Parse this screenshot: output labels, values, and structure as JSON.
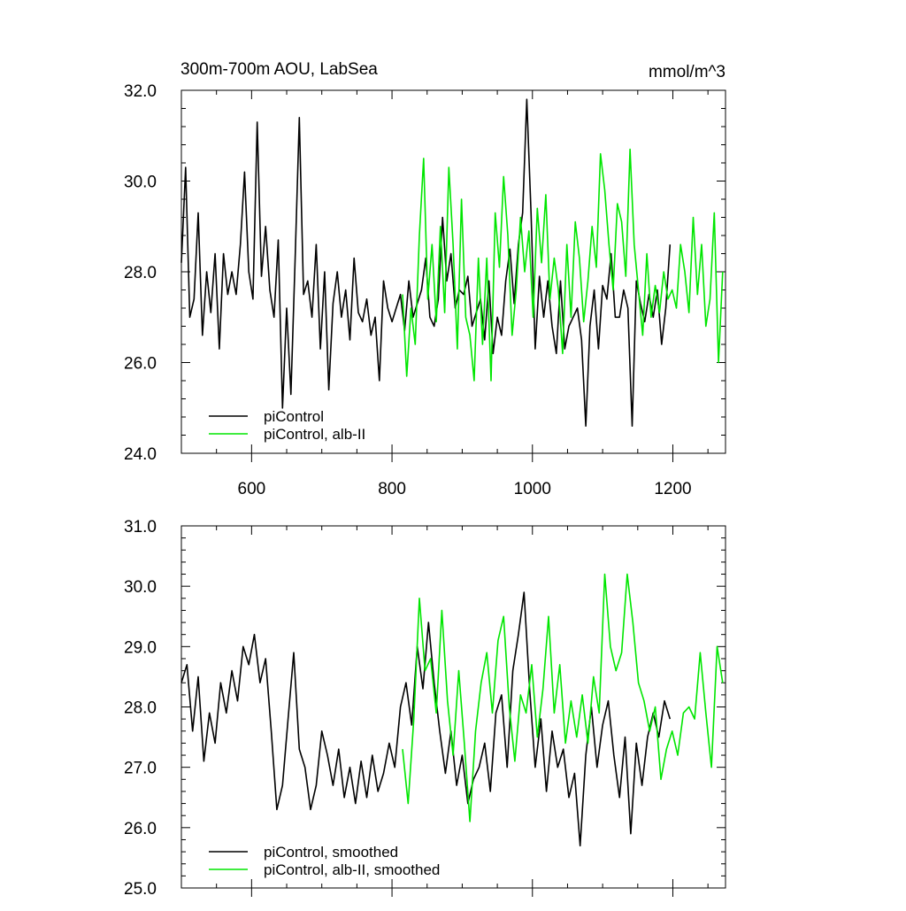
{
  "chart_data": [
    {
      "type": "line",
      "title": "300m-700m AOU, LabSea",
      "units": "mmol/m^3",
      "xlabel": "",
      "ylabel": "",
      "xlim": [
        500,
        1275
      ],
      "ylim": [
        24.0,
        32.0
      ],
      "xticks": [
        600,
        800,
        1000,
        1200
      ],
      "xtick_labels": [
        "600",
        "800",
        "1000",
        "1200"
      ],
      "yticks": [
        24.0,
        26.0,
        28.0,
        30.0,
        32.0
      ],
      "ytick_labels": [
        "24.0",
        "26.0",
        "28.0",
        "30.0",
        "32.0"
      ],
      "legend_position": "bottom-left",
      "series": [
        {
          "name": "piControl",
          "color": "#000000",
          "x": [
            500,
            506,
            512,
            518,
            524,
            530,
            536,
            542,
            548,
            554,
            560,
            566,
            572,
            578,
            584,
            590,
            596,
            602,
            608,
            614,
            620,
            626,
            632,
            638,
            644,
            650,
            656,
            662,
            668,
            674,
            680,
            686,
            692,
            698,
            704,
            710,
            716,
            722,
            728,
            734,
            740,
            746,
            752,
            758,
            764,
            770,
            776,
            782,
            788,
            794,
            800,
            806,
            812,
            818,
            824,
            830,
            836,
            842,
            848,
            854,
            860,
            866,
            872,
            878,
            884,
            890,
            896,
            902,
            908,
            914,
            920,
            926,
            932,
            938,
            944,
            950,
            956,
            962,
            968,
            974,
            980,
            986,
            992,
            998,
            1004,
            1010,
            1016,
            1022,
            1028,
            1034,
            1040,
            1046,
            1052,
            1058,
            1064,
            1070,
            1076,
            1082,
            1088,
            1094,
            1100,
            1106,
            1112,
            1118,
            1124,
            1130,
            1136,
            1142,
            1148,
            1154,
            1160,
            1166,
            1172,
            1178,
            1184,
            1190,
            1196
          ],
          "values": [
            28.2,
            30.3,
            27.0,
            27.4,
            29.3,
            26.6,
            28.0,
            27.1,
            28.4,
            26.3,
            28.4,
            27.5,
            28.0,
            27.5,
            28.6,
            30.2,
            28.0,
            27.4,
            31.3,
            27.9,
            29.0,
            27.6,
            27.0,
            28.7,
            25.0,
            27.2,
            25.3,
            28.3,
            31.4,
            27.5,
            27.8,
            27.0,
            28.6,
            26.3,
            28.0,
            25.4,
            27.3,
            28.0,
            27.0,
            27.6,
            26.5,
            28.3,
            27.1,
            26.9,
            27.4,
            26.6,
            27.0,
            25.6,
            27.8,
            27.2,
            26.9,
            27.2,
            27.5,
            26.7,
            27.8,
            27.0,
            27.3,
            27.6,
            28.3,
            27.0,
            26.8,
            27.4,
            29.2,
            27.8,
            28.4,
            27.2,
            27.6,
            27.5,
            27.9,
            26.8,
            27.1,
            27.4,
            26.5,
            27.8,
            26.2,
            27.0,
            26.6,
            27.8,
            28.5,
            27.3,
            28.6,
            29.3,
            31.8,
            29.3,
            26.3,
            27.9,
            27.0,
            27.8,
            26.8,
            26.2,
            27.8,
            26.3,
            26.8,
            27.0,
            27.2,
            26.5,
            24.6,
            26.8,
            27.6,
            26.3,
            27.7,
            27.4,
            28.4,
            27.0,
            27.0,
            27.6,
            27.2,
            24.6,
            27.8,
            27.3,
            26.9,
            27.5,
            27.0,
            27.6,
            26.4,
            27.2,
            28.6
          ]
        },
        {
          "name": "piControl, alb-II",
          "color": "#00e600",
          "x": [
            815,
            821,
            827,
            833,
            839,
            845,
            851,
            857,
            863,
            869,
            875,
            881,
            887,
            893,
            899,
            905,
            911,
            917,
            923,
            929,
            935,
            941,
            947,
            953,
            959,
            965,
            971,
            977,
            983,
            989,
            995,
            1001,
            1007,
            1013,
            1019,
            1025,
            1031,
            1037,
            1043,
            1049,
            1055,
            1061,
            1067,
            1073,
            1079,
            1085,
            1091,
            1097,
            1103,
            1109,
            1115,
            1121,
            1127,
            1133,
            1139,
            1145,
            1151,
            1157,
            1163,
            1169,
            1175,
            1181,
            1187,
            1193,
            1199,
            1205,
            1211,
            1217,
            1223,
            1229,
            1235,
            1241,
            1247,
            1253,
            1259,
            1265,
            1271
          ],
          "values": [
            27.5,
            25.7,
            27.2,
            26.4,
            28.8,
            30.5,
            27.4,
            28.6,
            26.9,
            29.0,
            27.1,
            30.3,
            28.6,
            26.3,
            29.6,
            27.0,
            26.6,
            25.6,
            28.3,
            26.4,
            28.3,
            25.6,
            29.3,
            28.1,
            30.1,
            28.8,
            26.6,
            27.6,
            29.2,
            28.0,
            28.9,
            27.0,
            29.4,
            28.2,
            29.7,
            27.4,
            28.3,
            27.6,
            26.2,
            28.6,
            27.0,
            29.1,
            28.3,
            26.9,
            27.8,
            29.0,
            28.1,
            30.6,
            29.8,
            28.6,
            27.6,
            29.5,
            29.1,
            27.9,
            30.7,
            28.6,
            27.6,
            26.6,
            28.4,
            27.0,
            27.7,
            27.1,
            28.0,
            27.4,
            27.6,
            27.2,
            28.6,
            28.0,
            27.1,
            29.2,
            27.5,
            28.6,
            26.8,
            27.4,
            29.3,
            26.0,
            28.0
          ]
        }
      ]
    },
    {
      "type": "line",
      "title": "",
      "xlabel": "",
      "ylabel": "",
      "xlim": [
        500,
        1275
      ],
      "ylim": [
        25.0,
        31.0
      ],
      "xticks": [
        600,
        800,
        1000,
        1200
      ],
      "yticks": [
        25.0,
        26.0,
        27.0,
        28.0,
        29.0,
        30.0,
        31.0
      ],
      "ytick_labels": [
        "25.0",
        "26.0",
        "27.0",
        "28.0",
        "29.0",
        "30.0",
        "31.0"
      ],
      "legend_position": "bottom-left",
      "series": [
        {
          "name": "piControl, smoothed",
          "color": "#000000",
          "x": [
            500,
            508,
            516,
            524,
            532,
            540,
            548,
            556,
            564,
            572,
            580,
            588,
            596,
            604,
            612,
            620,
            628,
            636,
            644,
            652,
            660,
            668,
            676,
            684,
            692,
            700,
            708,
            716,
            724,
            732,
            740,
            748,
            756,
            764,
            772,
            780,
            788,
            796,
            804,
            812,
            820,
            828,
            836,
            844,
            852,
            860,
            868,
            876,
            884,
            892,
            900,
            908,
            916,
            924,
            932,
            940,
            948,
            956,
            964,
            972,
            980,
            988,
            996,
            1004,
            1012,
            1020,
            1028,
            1036,
            1044,
            1052,
            1060,
            1068,
            1076,
            1084,
            1092,
            1100,
            1108,
            1116,
            1124,
            1132,
            1140,
            1148,
            1156,
            1164,
            1172,
            1180,
            1188,
            1196
          ],
          "values": [
            28.4,
            28.7,
            27.6,
            28.5,
            27.1,
            27.9,
            27.4,
            28.4,
            27.9,
            28.6,
            28.1,
            29.0,
            28.7,
            29.2,
            28.4,
            28.8,
            27.6,
            26.3,
            26.7,
            27.8,
            28.9,
            27.3,
            27.0,
            26.3,
            26.7,
            27.6,
            27.2,
            26.7,
            27.3,
            26.5,
            27.0,
            26.4,
            27.1,
            26.5,
            27.2,
            26.6,
            26.9,
            27.4,
            27.0,
            28.0,
            28.4,
            27.7,
            29.0,
            28.3,
            29.4,
            28.4,
            27.6,
            26.9,
            27.6,
            26.7,
            27.2,
            26.4,
            26.8,
            27.0,
            27.4,
            26.6,
            27.9,
            28.2,
            27.0,
            28.6,
            29.2,
            29.9,
            28.3,
            27.0,
            27.8,
            26.6,
            27.6,
            27.0,
            27.3,
            26.5,
            26.9,
            25.7,
            27.2,
            28.0,
            27.0,
            27.7,
            28.1,
            27.2,
            26.5,
            27.5,
            25.9,
            27.4,
            26.7,
            27.5,
            27.9,
            27.5,
            28.1,
            27.8
          ]
        },
        {
          "name": "piControl, alb-II, smoothed",
          "color": "#00e600",
          "x": [
            815,
            823,
            831,
            839,
            847,
            855,
            863,
            871,
            879,
            887,
            895,
            903,
            911,
            919,
            927,
            935,
            943,
            951,
            959,
            967,
            975,
            983,
            991,
            999,
            1007,
            1015,
            1023,
            1031,
            1039,
            1047,
            1055,
            1063,
            1071,
            1079,
            1087,
            1095,
            1103,
            1111,
            1119,
            1127,
            1135,
            1143,
            1151,
            1159,
            1167,
            1175,
            1183,
            1191,
            1199,
            1207,
            1215,
            1223,
            1231,
            1239,
            1247,
            1255,
            1263,
            1271
          ],
          "values": [
            27.3,
            26.4,
            27.8,
            29.8,
            28.6,
            28.8,
            27.9,
            29.6,
            28.1,
            27.2,
            28.6,
            27.4,
            26.1,
            27.6,
            28.4,
            28.9,
            27.9,
            29.1,
            29.5,
            28.0,
            27.1,
            28.2,
            27.9,
            28.7,
            27.5,
            28.3,
            29.5,
            27.9,
            28.7,
            27.4,
            28.1,
            27.5,
            28.2,
            27.4,
            28.5,
            27.9,
            30.2,
            29.0,
            28.6,
            28.9,
            30.2,
            29.4,
            28.4,
            28.1,
            27.6,
            28.0,
            26.8,
            27.3,
            27.6,
            27.2,
            27.9,
            28.0,
            27.8,
            28.9,
            27.9,
            27.0,
            29.0,
            28.4
          ]
        }
      ]
    }
  ]
}
